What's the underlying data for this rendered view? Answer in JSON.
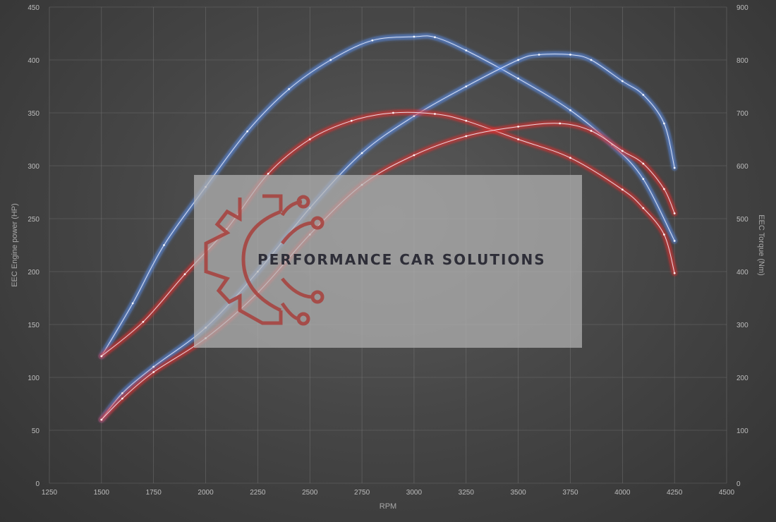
{
  "chart_data": {
    "type": "line",
    "xlabel": "RPM",
    "ylabel_left": "EEC Engine power (HP)",
    "ylabel_right": "EEC Torque (Nm)",
    "xlim": [
      1250,
      4500
    ],
    "ylim_left": [
      0,
      450
    ],
    "ylim_right": [
      0,
      900
    ],
    "x_ticks": [
      1250,
      1500,
      1750,
      2000,
      2250,
      2500,
      2750,
      3000,
      3250,
      3500,
      3750,
      4000,
      4250,
      4500
    ],
    "y_ticks_left": [
      0,
      50,
      100,
      150,
      200,
      250,
      300,
      350,
      400,
      450
    ],
    "y_ticks_right": [
      0,
      100,
      200,
      300,
      400,
      500,
      600,
      700,
      800,
      900
    ],
    "grid": true,
    "colors": {
      "tuned": "#5b8ee8",
      "stock": "#e03030"
    },
    "series": [
      {
        "axis": "right",
        "color": "#5b8ee8",
        "points": [
          [
            1500,
            240
          ],
          [
            1650,
            340
          ],
          [
            1800,
            450
          ],
          [
            2000,
            560
          ],
          [
            2200,
            665
          ],
          [
            2400,
            745
          ],
          [
            2600,
            800
          ],
          [
            2800,
            837
          ],
          [
            3000,
            844
          ],
          [
            3100,
            843
          ],
          [
            3250,
            818
          ],
          [
            3500,
            765
          ],
          [
            3750,
            705
          ],
          [
            3950,
            640
          ],
          [
            4100,
            575
          ],
          [
            4250,
            458
          ]
        ]
      },
      {
        "axis": "left",
        "color": "#5b8ee8",
        "points": [
          [
            1500,
            60
          ],
          [
            1600,
            85
          ],
          [
            1750,
            110
          ],
          [
            2000,
            147
          ],
          [
            2250,
            200
          ],
          [
            2500,
            260
          ],
          [
            2750,
            312
          ],
          [
            3000,
            347
          ],
          [
            3250,
            375
          ],
          [
            3500,
            400
          ],
          [
            3600,
            405
          ],
          [
            3750,
            405
          ],
          [
            3850,
            400
          ],
          [
            4000,
            380
          ],
          [
            4100,
            367
          ],
          [
            4200,
            340
          ],
          [
            4250,
            298
          ]
        ]
      },
      {
        "axis": "right",
        "color": "#e03030",
        "points": [
          [
            1500,
            240
          ],
          [
            1700,
            305
          ],
          [
            1900,
            395
          ],
          [
            2100,
            480
          ],
          [
            2300,
            585
          ],
          [
            2500,
            650
          ],
          [
            2700,
            685
          ],
          [
            2900,
            700
          ],
          [
            3100,
            698
          ],
          [
            3250,
            685
          ],
          [
            3500,
            650
          ],
          [
            3750,
            615
          ],
          [
            4000,
            555
          ],
          [
            4100,
            520
          ],
          [
            4200,
            470
          ],
          [
            4250,
            397
          ]
        ]
      },
      {
        "axis": "left",
        "color": "#e03030",
        "points": [
          [
            1500,
            60
          ],
          [
            1600,
            80
          ],
          [
            1750,
            105
          ],
          [
            2000,
            137
          ],
          [
            2250,
            180
          ],
          [
            2500,
            235
          ],
          [
            2750,
            282
          ],
          [
            3000,
            310
          ],
          [
            3250,
            328
          ],
          [
            3500,
            337
          ],
          [
            3700,
            340
          ],
          [
            3850,
            333
          ],
          [
            4000,
            314
          ],
          [
            4100,
            302
          ],
          [
            4200,
            278
          ],
          [
            4250,
            255
          ]
        ]
      }
    ]
  },
  "watermark": {
    "text": "PERFORMANCE CAR SOLUTIONS"
  }
}
